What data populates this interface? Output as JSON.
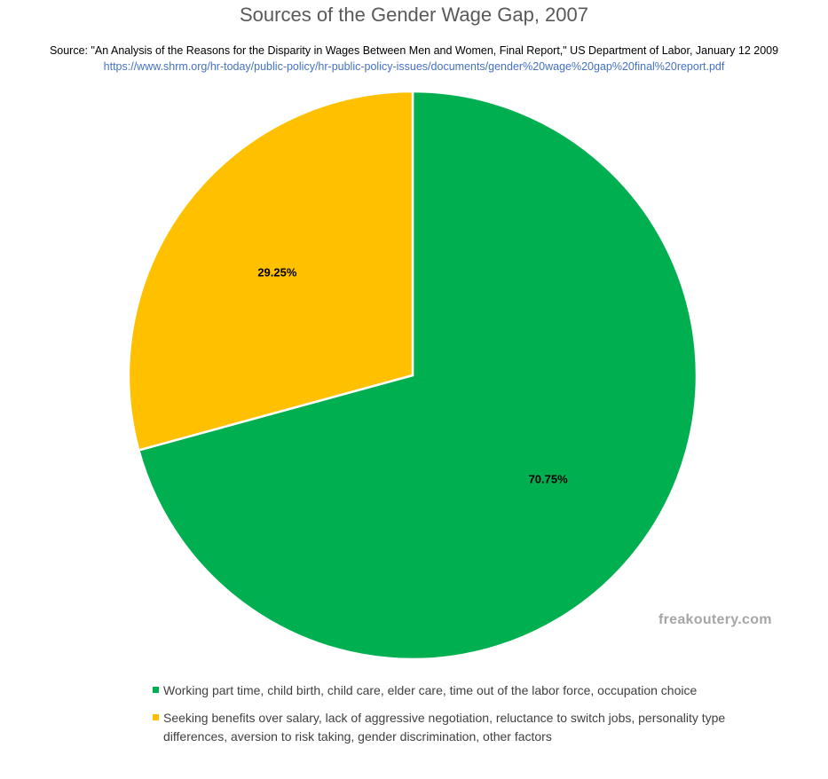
{
  "title": "Sources of the Gender Wage Gap, 2007",
  "source": "Source: \"An Analysis of the Reasons for the Disparity in Wages Between Men and Women, Final Report,\" US Department of Labor, January 12 2009",
  "source_url": "https://www.shrm.org/hr-today/public-policy/hr-public-policy-issues/documents/gender%20wage%20gap%20final%20report.pdf",
  "watermark": "freakoutery.com",
  "chart_data": {
    "type": "pie",
    "title": "Sources of the Gender Wage Gap, 2007",
    "categories": [
      "Working part time, child birth, child care, elder care, time out of the labor force, occupation choice",
      "Seeking benefits over salary, lack of aggressive negotiation, reluctance to switch jobs, personality type differences, aversion to risk taking, gender discrimination, other factors"
    ],
    "values": [
      70.75,
      29.25
    ],
    "data_labels": [
      "70.75%",
      "29.25%"
    ],
    "colors": [
      "#00b050",
      "#ffc000"
    ],
    "start_angle": "12 o'clock, clockwise",
    "legend_position": "bottom"
  }
}
